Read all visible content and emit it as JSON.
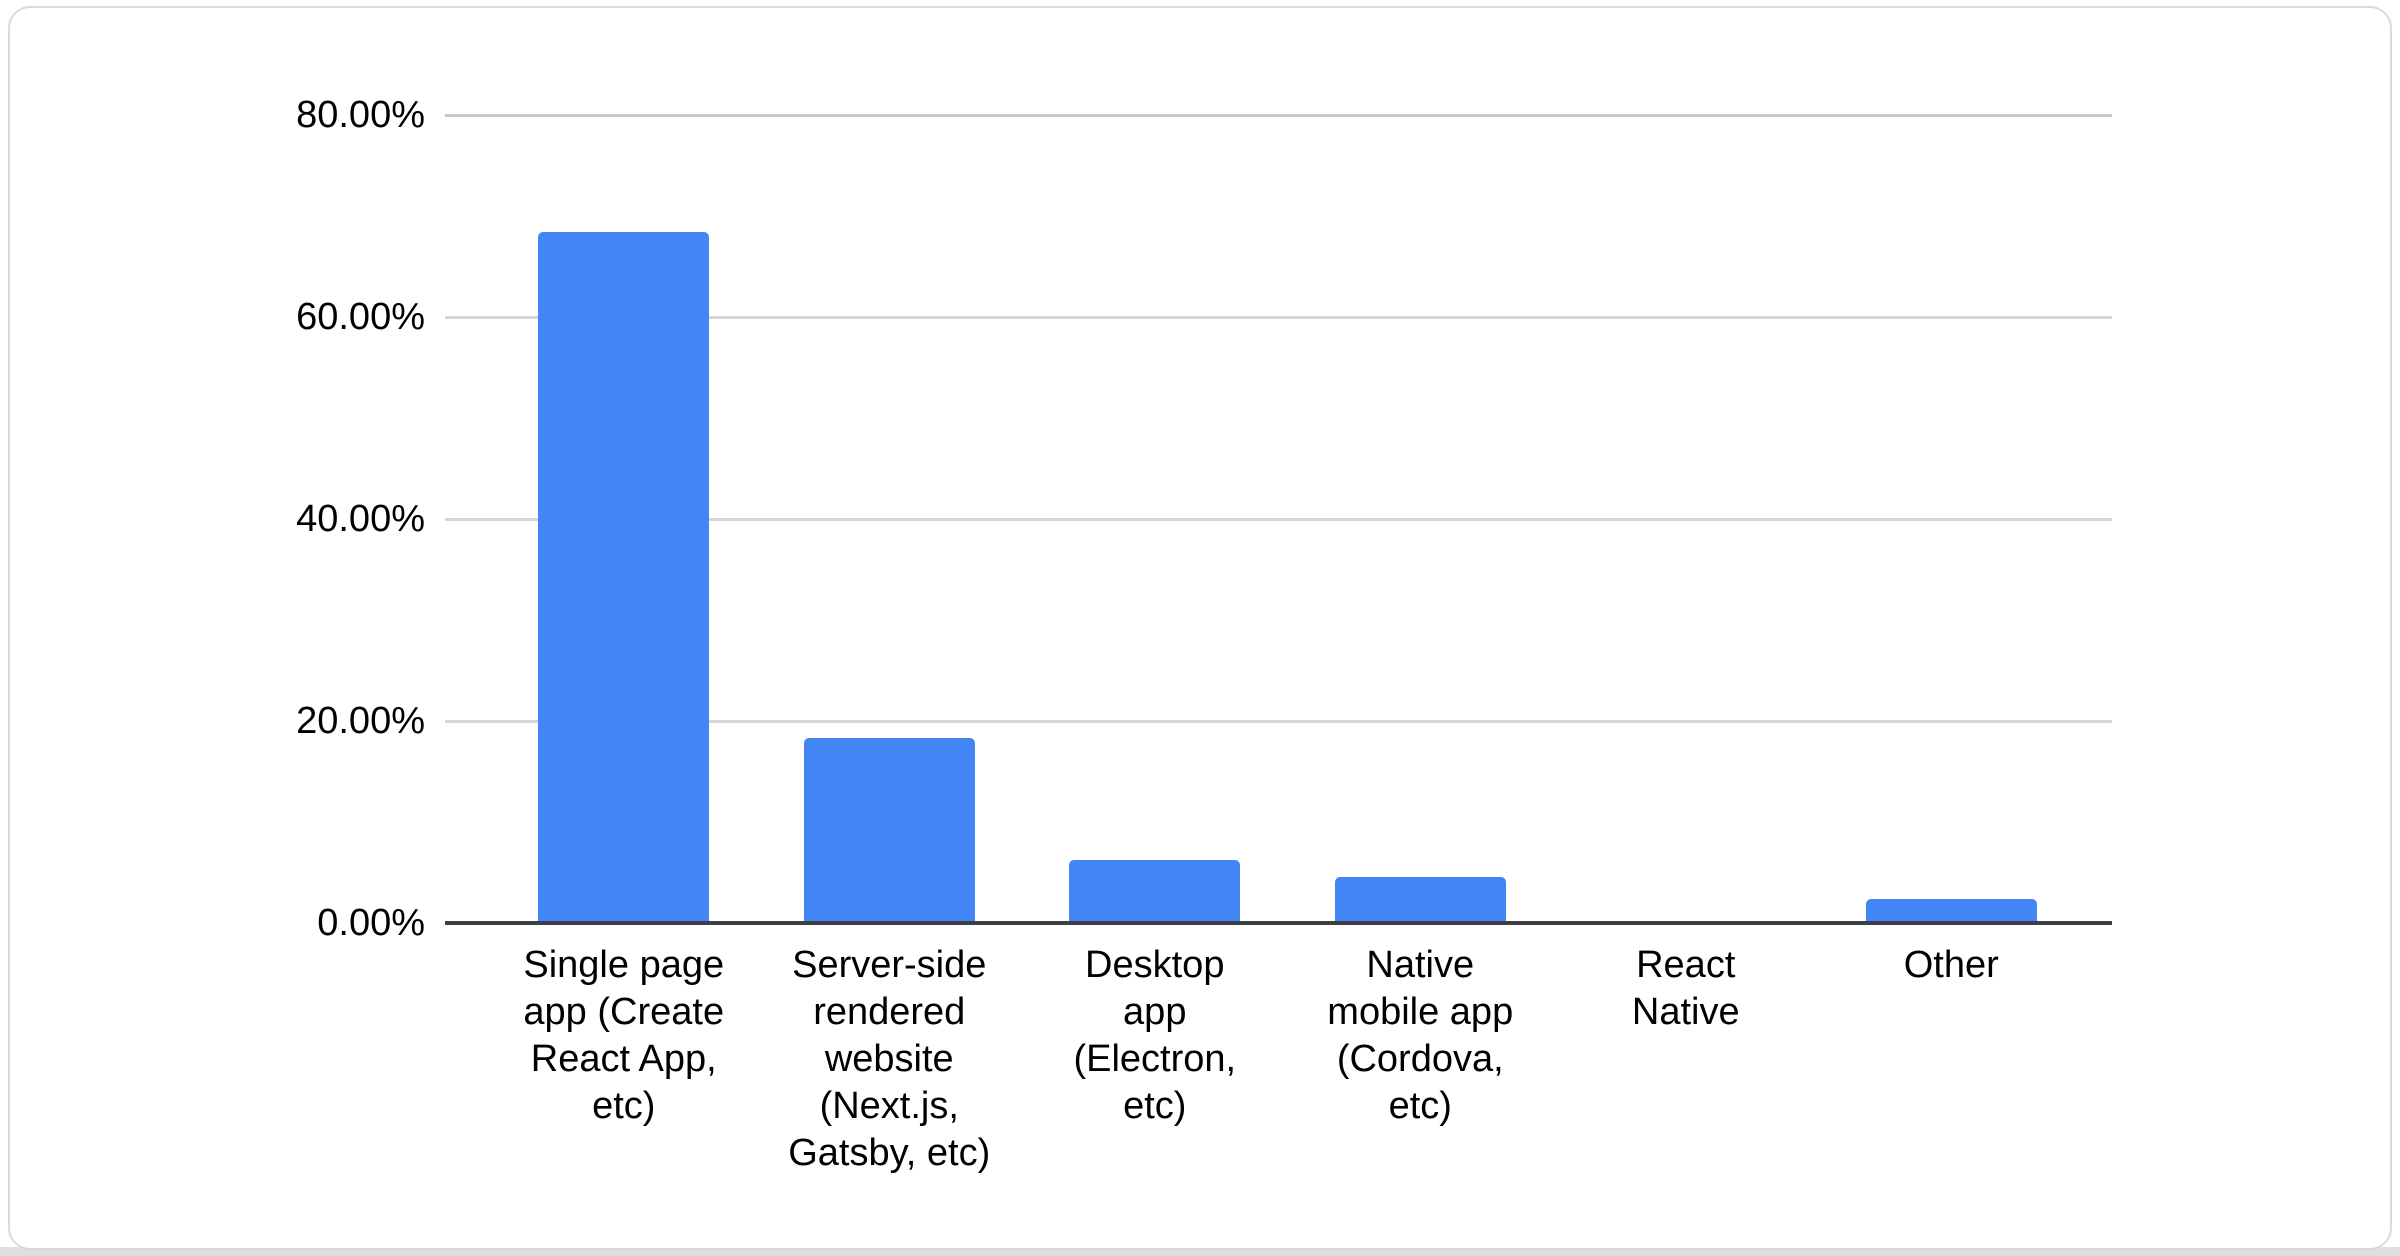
{
  "chart_data": {
    "type": "bar",
    "title": "",
    "xlabel": "",
    "ylabel": "",
    "legend": "none",
    "grid": true,
    "unit": "%",
    "categories": [
      "Single page app (Create React App, etc)",
      "Server-side rendered website (Next.js, Gatsby, etc)",
      "Desktop app (Electron, etc)",
      "Native mobile app (Cordova, etc)",
      "React Native",
      "Other"
    ],
    "categories_wrapped": [
      "Single page\napp (Create\nReact App,\netc)",
      "Server-side\nrendered\nwebsite\n(Next.js,\nGatsby, etc)",
      "Desktop\napp\n(Electron,\netc)",
      "Native\nmobile app\n(Cordova,\netc)",
      "React\nNative",
      "Other"
    ],
    "values": [
      68.4,
      18.3,
      6.2,
      4.6,
      0,
      2.4
    ],
    "y_axis": {
      "min": 0,
      "max": 80,
      "step": 20,
      "tick_labels": [
        "0.00%",
        "20.00%",
        "40.00%",
        "60.00%",
        "80.00%"
      ]
    },
    "colors": {
      "bar": "#4285f4",
      "gridline": "#d4d7da",
      "gridline_top": "#c6c9cc",
      "axis_line": "#3c4043",
      "text": "#000000",
      "card_border": "#d7dadd",
      "bottom_strip": "#dcdee1",
      "background": "#ffffff"
    }
  }
}
